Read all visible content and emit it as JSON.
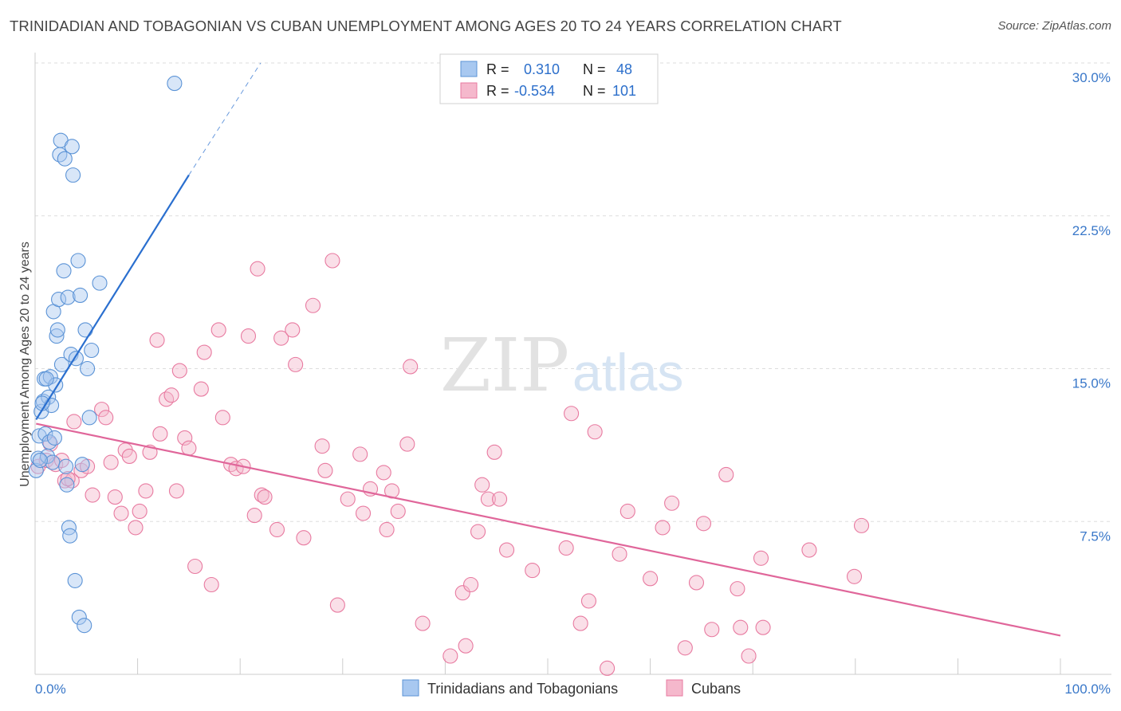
{
  "title": "TRINIDADIAN AND TOBAGONIAN VS CUBAN UNEMPLOYMENT AMONG AGES 20 TO 24 YEARS CORRELATION CHART",
  "source": "Source: ZipAtlas.com",
  "watermark": {
    "part1": "ZIP",
    "part2": "atlas"
  },
  "legend_top": {
    "rows": [
      {
        "r_label": "R =",
        "r_value": "0.310",
        "n_label": "N =",
        "n_value": "48"
      },
      {
        "r_label": "R =",
        "r_value": "-0.534",
        "n_label": "N =",
        "n_value": "101"
      }
    ]
  },
  "colors": {
    "blue_fill": "#a8c8f0",
    "blue_stroke": "#5b93d6",
    "blue_line": "#2a6fcf",
    "pink_fill": "#f5b8cc",
    "pink_stroke": "#e87aa0",
    "pink_line": "#e0669a",
    "grid": "#dddddd",
    "tick_text": "#3a78c9"
  },
  "chart_data": {
    "type": "scatter",
    "title": "TRINIDADIAN AND TOBAGONIAN VS CUBAN UNEMPLOYMENT AMONG AGES 20 TO 24 YEARS CORRELATION CHART",
    "xlabel": "",
    "ylabel": "Unemployment Among Ages 20 to 24 years",
    "xlim": [
      0,
      100
    ],
    "ylim": [
      0,
      30
    ],
    "x_tick_labels": [
      "0.0%",
      "100.0%"
    ],
    "y_ticks": [
      7.5,
      15.0,
      22.5,
      30.0
    ],
    "y_tick_labels": [
      "7.5%",
      "15.0%",
      "22.5%",
      "30.0%"
    ],
    "grid": true,
    "legend_position": "bottom",
    "series": [
      {
        "name": "Trinidadians and Tobagonians",
        "color": "#a8c8f0",
        "points": [
          [
            0.1,
            10.0
          ],
          [
            0.3,
            10.6
          ],
          [
            0.4,
            11.7
          ],
          [
            0.6,
            12.9
          ],
          [
            0.8,
            13.4
          ],
          [
            0.9,
            14.5
          ],
          [
            1.0,
            11.8
          ],
          [
            1.2,
            10.7
          ],
          [
            1.3,
            13.6
          ],
          [
            1.4,
            11.4
          ],
          [
            1.5,
            14.6
          ],
          [
            1.6,
            13.2
          ],
          [
            1.7,
            10.4
          ],
          [
            1.8,
            17.8
          ],
          [
            1.9,
            11.6
          ],
          [
            2.0,
            14.2
          ],
          [
            2.1,
            16.6
          ],
          [
            2.2,
            16.9
          ],
          [
            2.3,
            18.4
          ],
          [
            2.4,
            25.5
          ],
          [
            2.5,
            26.2
          ],
          [
            2.6,
            15.2
          ],
          [
            2.8,
            19.8
          ],
          [
            2.9,
            25.3
          ],
          [
            3.0,
            10.2
          ],
          [
            3.1,
            9.3
          ],
          [
            3.2,
            18.5
          ],
          [
            3.3,
            7.2
          ],
          [
            3.4,
            6.8
          ],
          [
            3.5,
            15.7
          ],
          [
            3.6,
            25.9
          ],
          [
            3.7,
            24.5
          ],
          [
            3.9,
            4.6
          ],
          [
            4.0,
            15.5
          ],
          [
            4.2,
            20.3
          ],
          [
            4.3,
            2.8
          ],
          [
            4.4,
            18.6
          ],
          [
            4.6,
            10.3
          ],
          [
            4.8,
            2.4
          ],
          [
            4.9,
            16.9
          ],
          [
            5.1,
            15.0
          ],
          [
            5.3,
            12.6
          ],
          [
            5.5,
            15.9
          ],
          [
            6.3,
            19.2
          ],
          [
            13.6,
            29.0
          ],
          [
            0.5,
            10.5
          ],
          [
            1.1,
            14.5
          ],
          [
            0.7,
            13.3
          ]
        ]
      },
      {
        "name": "Cubans",
        "color": "#f5b8cc",
        "points": [
          [
            0.3,
            10.2
          ],
          [
            1.1,
            10.5
          ],
          [
            1.5,
            11.3
          ],
          [
            2.0,
            10.3
          ],
          [
            2.6,
            10.5
          ],
          [
            2.9,
            9.5
          ],
          [
            3.6,
            9.5
          ],
          [
            3.8,
            12.4
          ],
          [
            4.5,
            10.0
          ],
          [
            5.1,
            10.2
          ],
          [
            5.6,
            8.8
          ],
          [
            6.5,
            13.0
          ],
          [
            6.9,
            12.6
          ],
          [
            7.4,
            10.4
          ],
          [
            7.8,
            8.7
          ],
          [
            8.4,
            7.9
          ],
          [
            8.8,
            11.0
          ],
          [
            9.2,
            10.7
          ],
          [
            9.8,
            7.2
          ],
          [
            10.2,
            8.0
          ],
          [
            10.8,
            9.0
          ],
          [
            11.2,
            10.9
          ],
          [
            11.9,
            16.4
          ],
          [
            12.2,
            11.8
          ],
          [
            12.8,
            13.5
          ],
          [
            13.3,
            13.7
          ],
          [
            13.8,
            9.0
          ],
          [
            14.1,
            14.9
          ],
          [
            14.6,
            11.6
          ],
          [
            15.0,
            11.1
          ],
          [
            15.6,
            5.3
          ],
          [
            16.2,
            14.0
          ],
          [
            16.5,
            15.8
          ],
          [
            17.2,
            4.4
          ],
          [
            17.9,
            16.9
          ],
          [
            18.3,
            12.6
          ],
          [
            19.1,
            10.3
          ],
          [
            19.6,
            10.1
          ],
          [
            20.3,
            10.2
          ],
          [
            20.8,
            16.6
          ],
          [
            21.4,
            7.8
          ],
          [
            21.7,
            19.9
          ],
          [
            22.1,
            8.8
          ],
          [
            22.4,
            8.7
          ],
          [
            23.6,
            7.1
          ],
          [
            24.0,
            16.5
          ],
          [
            25.1,
            16.9
          ],
          [
            25.4,
            15.2
          ],
          [
            26.2,
            6.7
          ],
          [
            27.1,
            18.1
          ],
          [
            28.0,
            11.2
          ],
          [
            28.3,
            10.0
          ],
          [
            29.0,
            20.3
          ],
          [
            29.5,
            3.4
          ],
          [
            30.5,
            8.6
          ],
          [
            31.7,
            10.8
          ],
          [
            32.0,
            7.9
          ],
          [
            32.7,
            9.1
          ],
          [
            34.0,
            9.9
          ],
          [
            34.3,
            7.1
          ],
          [
            34.8,
            9.0
          ],
          [
            35.4,
            8.0
          ],
          [
            36.3,
            11.3
          ],
          [
            36.6,
            15.1
          ],
          [
            37.8,
            2.5
          ],
          [
            40.5,
            0.9
          ],
          [
            41.7,
            4.0
          ],
          [
            42.0,
            1.4
          ],
          [
            42.5,
            4.4
          ],
          [
            43.2,
            7.0
          ],
          [
            43.6,
            9.3
          ],
          [
            44.2,
            8.6
          ],
          [
            44.8,
            10.9
          ],
          [
            45.3,
            8.6
          ],
          [
            46.0,
            6.1
          ],
          [
            48.5,
            5.1
          ],
          [
            51.8,
            6.2
          ],
          [
            52.3,
            12.8
          ],
          [
            53.2,
            2.5
          ],
          [
            54.0,
            3.6
          ],
          [
            54.6,
            11.9
          ],
          [
            55.8,
            0.3
          ],
          [
            57.0,
            5.9
          ],
          [
            57.8,
            8.0
          ],
          [
            60.0,
            4.7
          ],
          [
            61.2,
            7.2
          ],
          [
            62.1,
            8.4
          ],
          [
            63.4,
            1.3
          ],
          [
            64.5,
            4.5
          ],
          [
            65.2,
            7.4
          ],
          [
            66.0,
            2.2
          ],
          [
            67.4,
            9.8
          ],
          [
            68.5,
            4.2
          ],
          [
            68.8,
            2.3
          ],
          [
            69.6,
            0.9
          ],
          [
            70.8,
            5.7
          ],
          [
            71.0,
            2.3
          ],
          [
            75.5,
            6.1
          ],
          [
            79.9,
            4.8
          ],
          [
            80.6,
            7.3
          ],
          [
            3.2,
            9.6
          ]
        ]
      }
    ],
    "trend_lines": [
      {
        "series": "Trinidadians and Tobagonians",
        "x": [
          0.1,
          15.0
        ],
        "y": [
          12.5,
          24.5
        ],
        "dashed_extension_x": [
          15.0,
          22.0
        ],
        "dashed_extension_y": [
          24.5,
          30.0
        ]
      },
      {
        "series": "Cubans",
        "x": [
          0.1,
          100.0
        ],
        "y": [
          12.3,
          1.9
        ]
      }
    ]
  }
}
